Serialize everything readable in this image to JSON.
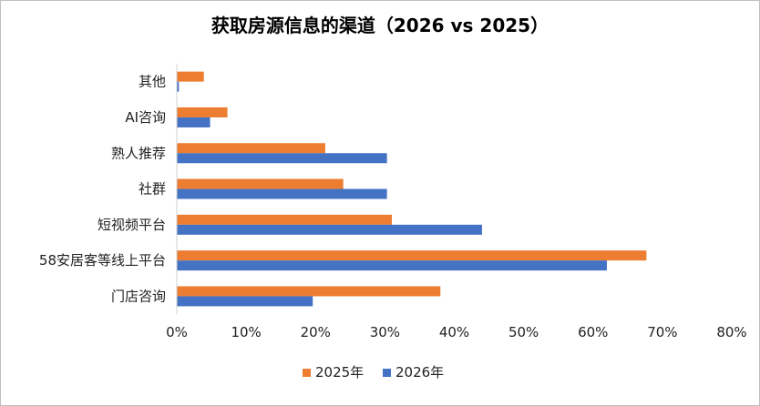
{
  "chart_data": {
    "type": "bar",
    "orientation": "horizontal",
    "title": "获取房源信息的渠道（2026 vs 2025）",
    "categories": [
      "其他",
      "AI咨询",
      "熟人推荐",
      "社群",
      "短视频平台",
      "58安居客等线上平台",
      "门店咨询"
    ],
    "series": [
      {
        "name": "2025年",
        "color": "#ED7D31",
        "values": [
          3.9,
          7.3,
          21.4,
          24.0,
          31.0,
          67.7,
          38.0
        ]
      },
      {
        "name": "2026年",
        "color": "#4472C4",
        "values": [
          0.3,
          4.8,
          30.3,
          30.3,
          44.0,
          62.0,
          19.6
        ]
      }
    ],
    "xlim": [
      0,
      80
    ],
    "xticks": [
      "0%",
      "10%",
      "20%",
      "30%",
      "40%",
      "50%",
      "60%",
      "70%",
      "80%"
    ],
    "grid": false,
    "legend": "bottom"
  }
}
